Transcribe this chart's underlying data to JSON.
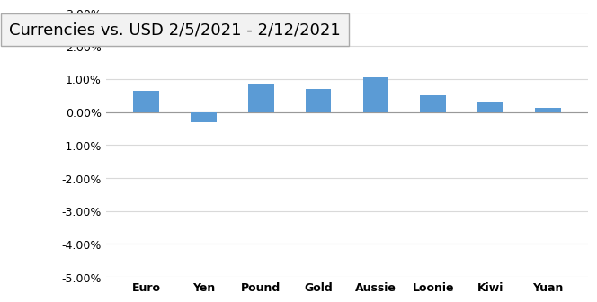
{
  "title": "Currencies vs. USD 2/5/2021 - 2/12/2021",
  "categories": [
    "Euro",
    "Yen",
    "Pound",
    "Gold",
    "Aussie",
    "Loonie",
    "Kiwi",
    "Yuan"
  ],
  "values": [
    0.0065,
    -0.003,
    0.0085,
    0.007,
    0.0105,
    0.005,
    0.0028,
    0.0012
  ],
  "bar_color": "#5B9BD5",
  "background_color": "#FFFFFF",
  "plot_bg_color": "#FFFFFF",
  "ylim": [
    -0.05,
    0.03
  ],
  "yticks": [
    -0.05,
    -0.04,
    -0.03,
    -0.02,
    -0.01,
    0.0,
    0.01,
    0.02,
    0.03
  ],
  "title_fontsize": 13,
  "tick_fontsize": 9,
  "xtick_fontsize": 9,
  "grid_color": "#D9D9D9",
  "title_box_facecolor": "#F2F2F2",
  "title_box_edgecolor": "#AAAAAA",
  "bar_width": 0.45
}
